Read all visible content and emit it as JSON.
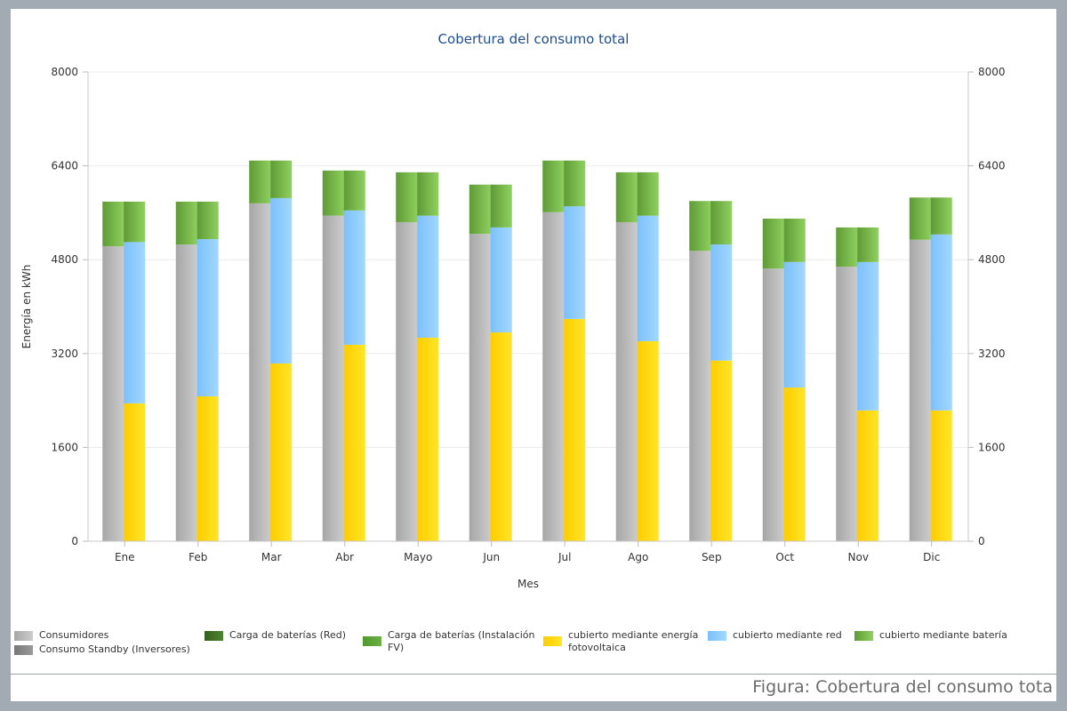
{
  "caption": "Figura: Cobertura del consumo tota",
  "legend": [
    {
      "label": "Consumidores",
      "color": "#c0c0c0"
    },
    {
      "label": "Consumo Standby (Inversores)",
      "color": "#8a8a8a"
    },
    {
      "label": "Carga de baterías (Red)",
      "color": "#3f6e2a"
    },
    {
      "label": "Carga de baterías (Instalación\nFV)",
      "color": "#63a33b"
    },
    {
      "label": "cubierto mediante energía\nfotovoltaica",
      "color": "#ffd814"
    },
    {
      "label": "cubierto mediante red",
      "color": "#8fcdfc"
    },
    {
      "label": "cubierto mediante batería",
      "color": "#7dc653"
    }
  ],
  "chart_data": {
    "type": "bar",
    "title": "Cobertura del consumo total",
    "xlabel": "Mes",
    "ylabel": "Energía en kWh",
    "ylim": [
      0,
      8000
    ],
    "yticks": [
      0,
      1600,
      3200,
      4800,
      6400,
      8000
    ],
    "secondary_yticks": [
      0,
      1600,
      3200,
      4800,
      6400,
      8000
    ],
    "grid": true,
    "legend_position": "bottom",
    "categories": [
      "Ene",
      "Feb",
      "Mar",
      "Abr",
      "Mayo",
      "Jun",
      "Jul",
      "Ago",
      "Sep",
      "Oct",
      "Nov",
      "Dic"
    ],
    "stacks": [
      {
        "name": "consumo",
        "series": [
          {
            "name": "Consumidores",
            "color": "#bdbdbd",
            "values": [
              5030,
              5060,
              5760,
              5550,
              5440,
              5240,
              5610,
              5440,
              4950,
              4650,
              4680,
              5140
            ]
          },
          {
            "name": "Consumo Standby (Inversores)",
            "color": "#8a8a8a",
            "values": [
              0,
              0,
              0,
              0,
              0,
              0,
              0,
              0,
              0,
              0,
              0,
              0
            ]
          },
          {
            "name": "Carga de baterías (Red)",
            "color": "#3f6e2a",
            "values": [
              0,
              0,
              0,
              0,
              0,
              0,
              0,
              0,
              0,
              0,
              0,
              0
            ]
          },
          {
            "name": "Carga de baterías (Instalación FV)",
            "color": "#6aaa43",
            "values": [
              760,
              730,
              730,
              770,
              850,
              840,
              880,
              850,
              850,
              850,
              670,
              720
            ]
          }
        ]
      },
      {
        "name": "cobertura",
        "series": [
          {
            "name": "cubierto mediante energía fotovoltaica",
            "color": "#ffd814",
            "values": [
              2350,
              2470,
              3030,
              3350,
              3470,
              3560,
              3790,
              3410,
              3080,
              2620,
              2230,
              2230
            ]
          },
          {
            "name": "cubierto mediante red",
            "color": "#8fcdfc",
            "values": [
              2750,
              2680,
              2820,
              2290,
              2080,
              1790,
              1920,
              2140,
              1980,
              2140,
              2530,
              3000
            ]
          },
          {
            "name": "cubierto mediante batería",
            "color": "#7dc653",
            "values": [
              690,
              640,
              640,
              680,
              740,
              730,
              780,
              740,
              740,
              740,
              590,
              630
            ]
          }
        ]
      }
    ]
  }
}
